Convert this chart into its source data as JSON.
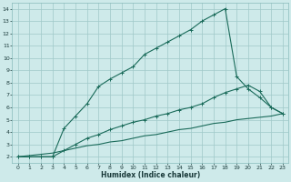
{
  "xlabel": "Humidex (Indice chaleur)",
  "background_color": "#ceeaea",
  "line_color": "#1a6b5a",
  "grid_color": "#a0c8c8",
  "xlim": [
    -0.5,
    23.5
  ],
  "ylim": [
    1.5,
    14.5
  ],
  "xticks": [
    0,
    1,
    2,
    3,
    4,
    5,
    6,
    7,
    8,
    9,
    10,
    11,
    12,
    13,
    14,
    15,
    16,
    17,
    18,
    19,
    20,
    21,
    22,
    23
  ],
  "yticks": [
    2,
    3,
    4,
    5,
    6,
    7,
    8,
    9,
    10,
    11,
    12,
    13,
    14
  ],
  "line1_x": [
    0,
    1,
    2,
    3,
    4,
    5,
    6,
    7,
    8,
    9,
    10,
    11,
    12,
    13,
    14,
    15,
    16,
    17,
    18,
    19,
    20,
    21,
    22,
    23
  ],
  "line1_y": [
    2.0,
    2.0,
    2.0,
    2.0,
    4.3,
    5.3,
    6.3,
    7.7,
    8.3,
    8.8,
    9.3,
    10.3,
    10.8,
    11.3,
    11.8,
    12.3,
    13.0,
    13.5,
    14.0,
    8.5,
    7.5,
    6.8,
    6.0,
    5.5
  ],
  "line2_x": [
    0,
    1,
    2,
    3,
    4,
    5,
    6,
    7,
    8,
    9,
    10,
    11,
    12,
    13,
    14,
    15,
    16,
    17,
    18,
    19,
    20,
    21,
    22,
    23
  ],
  "line2_y": [
    2.0,
    2.0,
    2.0,
    2.0,
    2.5,
    3.0,
    3.5,
    3.8,
    4.2,
    4.5,
    4.8,
    5.0,
    5.3,
    5.5,
    5.8,
    6.0,
    6.3,
    6.8,
    7.2,
    7.5,
    7.8,
    7.3,
    6.0,
    5.5
  ],
  "line3_x": [
    0,
    1,
    2,
    3,
    4,
    5,
    6,
    7,
    8,
    9,
    10,
    11,
    12,
    13,
    14,
    15,
    16,
    17,
    18,
    19,
    20,
    21,
    22,
    23
  ],
  "line3_y": [
    2.0,
    2.1,
    2.2,
    2.3,
    2.5,
    2.7,
    2.9,
    3.0,
    3.2,
    3.3,
    3.5,
    3.7,
    3.8,
    4.0,
    4.2,
    4.3,
    4.5,
    4.7,
    4.8,
    5.0,
    5.1,
    5.2,
    5.3,
    5.5
  ]
}
